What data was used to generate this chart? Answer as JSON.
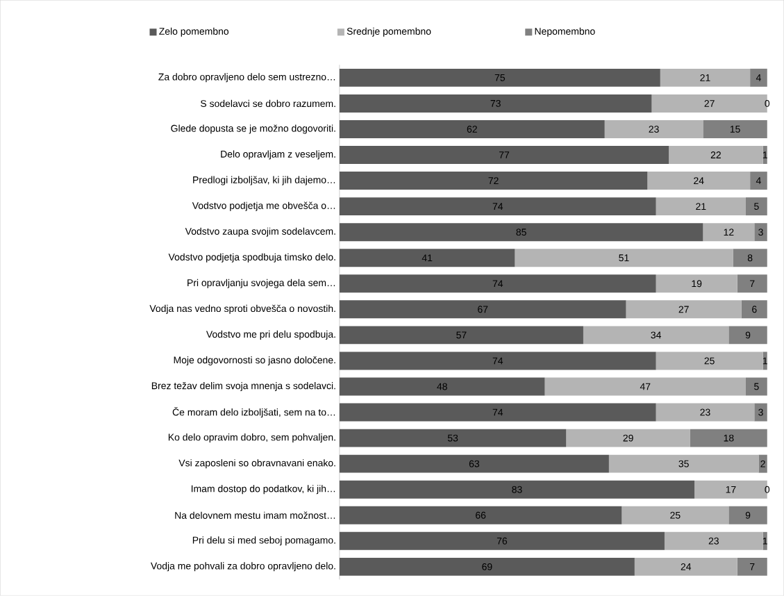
{
  "chart_data": {
    "type": "bar",
    "orientation": "horizontal",
    "stacked": true,
    "data_labels": true,
    "legend": "top",
    "categories": [
      "Za dobro opravljeno delo sem ustrezno…",
      "S sodelavci se dobro razumem.",
      "Glede dopusta se je možno dogovoriti.",
      "Delo opravljam z veseljem.",
      "Predlogi izboljšav, ki jih dajemo…",
      "Vodstvo podjetja me obvešča o…",
      "Vodstvo zaupa svojim sodelavcem.",
      "Vodstvo podjetja spodbuja timsko delo.",
      "Pri opravljanju svojega dela sem…",
      "Vodja nas vedno sproti obvešča o novostih.",
      "Vodstvo me pri delu spodbuja.",
      "Moje odgovornosti so jasno določene.",
      "Brez težav delim svoja mnenja s sodelavci.",
      "Če moram delo izboljšati, sem na to…",
      "Ko delo opravim dobro, sem pohvaljen.",
      "Vsi zaposleni so obravnavani enako.",
      "Imam dostop do podatkov, ki jih…",
      "Na delovnem mestu imam možnost…",
      "Pri delu si med seboj pomagamo.",
      "Vodja me pohvali za  dobro opravljeno delo."
    ],
    "series": [
      {
        "name": "Zelo pomembno",
        "color": "#5a5a5a",
        "values": [
          75,
          73,
          62,
          77,
          72,
          74,
          85,
          41,
          74,
          67,
          57,
          74,
          48,
          74,
          53,
          63,
          83,
          66,
          76,
          69
        ]
      },
      {
        "name": "Srednje pomembno",
        "color": "#b4b4b4",
        "values": [
          21,
          27,
          23,
          22,
          24,
          21,
          12,
          51,
          19,
          27,
          34,
          25,
          47,
          23,
          29,
          35,
          17,
          25,
          23,
          24
        ]
      },
      {
        "name": "Nepomembno",
        "color": "#808080",
        "values": [
          4,
          0,
          15,
          1,
          4,
          5,
          3,
          8,
          7,
          6,
          9,
          1,
          5,
          3,
          18,
          2,
          0,
          9,
          1,
          7
        ]
      }
    ]
  }
}
